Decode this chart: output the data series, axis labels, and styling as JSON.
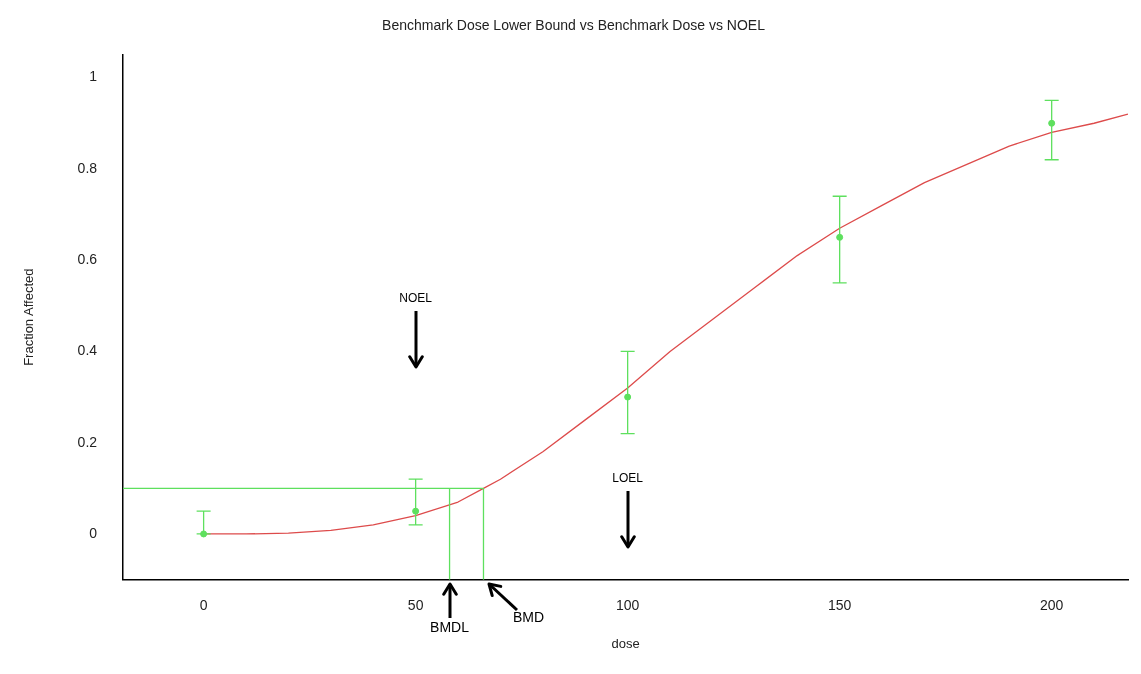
{
  "chart_data": {
    "type": "scatter",
    "title": "Benchmark Dose Lower Bound vs Benchmark Dose vs NOEL",
    "xlabel": "dose",
    "ylabel": "Fraction Affected",
    "xlim": [
      -19,
      218
    ],
    "xticks": [
      0,
      50,
      100,
      150,
      200
    ],
    "ylim": [
      -0.1,
      1.05
    ],
    "yticks": [
      0,
      0.2,
      0.4,
      0.6,
      0.8,
      1
    ],
    "grid": false,
    "series": [
      {
        "color": "#5ee05e",
        "marker": "circle",
        "x": [
          0,
          50,
          100,
          150,
          200
        ],
        "values": [
          0,
          0.05,
          0.3,
          0.65,
          0.9
        ],
        "errors": [
          [
            0,
            0.05
          ],
          [
            0.02,
            0.12
          ],
          [
            0.22,
            0.4
          ],
          [
            0.55,
            0.74
          ],
          [
            0.82,
            0.95
          ]
        ]
      },
      {
        "type": "line",
        "color": "#dd4b4b",
        "marker": "none",
        "x": [
          0,
          10,
          20,
          30,
          40,
          50,
          60,
          66,
          70,
          80,
          90,
          100,
          110,
          120,
          130,
          140,
          150,
          160,
          170,
          180,
          190,
          200,
          210,
          218
        ],
        "values": [
          0,
          0,
          0.002,
          0.008,
          0.02,
          0.04,
          0.07,
          0.1,
          0.12,
          0.18,
          0.25,
          0.32,
          0.4,
          0.47,
          0.54,
          0.61,
          0.67,
          0.72,
          0.77,
          0.81,
          0.85,
          0.88,
          0.9,
          0.92
        ]
      }
    ],
    "ref_lines": [
      {
        "axis": "y",
        "value": 0.1,
        "color": "#5ee05e"
      },
      {
        "axis": "x",
        "value": 58,
        "label": "BMDL",
        "color": "#5ee05e"
      },
      {
        "axis": "x",
        "value": 66,
        "label": "BMD",
        "color": "#5ee05e"
      }
    ],
    "annotations": [
      "NOEL",
      "LOEL"
    ],
    "legend": false
  }
}
